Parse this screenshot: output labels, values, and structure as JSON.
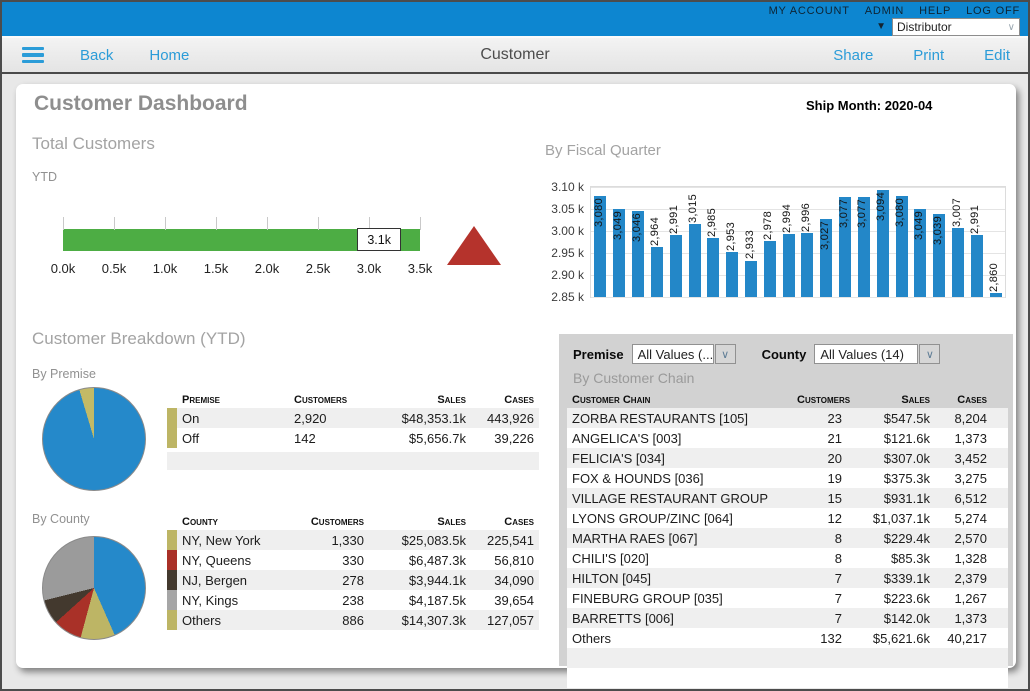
{
  "top_bar": {
    "links": [
      "MY ACCOUNT",
      "ADMIN",
      "HELP",
      "LOG OFF"
    ],
    "selector": {
      "value": "Distributor"
    }
  },
  "nav": {
    "back": "Back",
    "home": "Home",
    "title": "Customer",
    "share": "Share",
    "print": "Print",
    "edit": "Edit"
  },
  "page": {
    "title": "Customer Dashboard",
    "ship_month": "Ship Month: 2020-04",
    "breakdown_title": "Customer Breakdown (YTD)"
  },
  "chart_data": [
    {
      "id": "total-customers-gauge",
      "type": "bar",
      "title": "Total Customers",
      "subtitle": "YTD",
      "value": 3100,
      "value_label": "3.1k",
      "xlim": [
        0,
        3500
      ],
      "axis_ticks": [
        "0.0k",
        "0.5k",
        "1.0k",
        "1.5k",
        "2.0k",
        "2.5k",
        "3.0k",
        "3.5k"
      ],
      "bar_color": "#4dad44",
      "indicator": "red-up-triangle",
      "indicator_color": "#b5332c"
    },
    {
      "id": "by-fiscal-quarter",
      "type": "bar",
      "title": "By Fiscal Quarter",
      "values": [
        3080,
        3049,
        3046,
        2964,
        2991,
        3015,
        2985,
        2953,
        2933,
        2978,
        2994,
        2996,
        3027,
        3077,
        3077,
        3094,
        3080,
        3049,
        3039,
        3007,
        2991,
        2860
      ],
      "labels": [
        "3,080",
        "3,049",
        "3,046",
        "2,964",
        "2,991",
        "3,015",
        "2,985",
        "2,953",
        "2,933",
        "2,978",
        "2,994",
        "2,996",
        "3,027",
        "3,077",
        "3,077",
        "3,094",
        "3,080",
        "3,049",
        "3,039",
        "3,007",
        "2,991",
        "2,860"
      ],
      "ylim": [
        2850,
        3100
      ],
      "ytick_labels": [
        "3.10 k",
        "3.05 k",
        "3.00 k",
        "2.95 k",
        "2.90 k",
        "2.85 k"
      ],
      "bar_color": "#2387c8",
      "grid": true,
      "legend": "none"
    },
    {
      "id": "by-premise-pie",
      "type": "pie",
      "title": "By Premise",
      "slices": [
        {
          "label": "On",
          "pct": 95.4,
          "color": "#2589ca"
        },
        {
          "label": "Off",
          "pct": 4.6,
          "color": "#c3ba66"
        }
      ]
    },
    {
      "id": "by-county-pie",
      "type": "pie",
      "title": "By County",
      "slices": [
        {
          "label": "NY, New York",
          "pct": 43.4,
          "color": "#2589ca"
        },
        {
          "label": "NY, Queens",
          "pct": 10.8,
          "color": "#bdb565"
        },
        {
          "label": "NJ, Bergen",
          "pct": 9.1,
          "color": "#a93128"
        },
        {
          "label": "NY, Kings",
          "pct": 7.8,
          "color": "#43392e"
        },
        {
          "label": "Others",
          "pct": 28.9,
          "color": "#9b9b9b"
        }
      ]
    }
  ],
  "premise_table": {
    "headers": [
      "Premise",
      "Customers",
      "Sales",
      "Cases"
    ],
    "swatches": [
      "#bdb565",
      "#bdb565"
    ],
    "rows": [
      [
        "On",
        "2,920",
        "$48,353.1k",
        "443,926"
      ],
      [
        "Off",
        "142",
        "$5,656.7k",
        "39,226"
      ]
    ]
  },
  "county_table": {
    "headers": [
      "County",
      "Customers",
      "Sales",
      "Cases"
    ],
    "swatches": [
      "#bdb565",
      "#a93128",
      "#43392e",
      "#a6a6a6",
      "#bdb565"
    ],
    "rows": [
      [
        "NY, New York",
        "1,330",
        "$25,083.5k",
        "225,541"
      ],
      [
        "NY, Queens",
        "330",
        "$6,487.3k",
        "56,810"
      ],
      [
        "NJ, Bergen",
        "278",
        "$3,944.1k",
        "34,090"
      ],
      [
        "NY, Kings",
        "238",
        "$4,187.5k",
        "39,654"
      ],
      [
        "Others",
        "886",
        "$14,307.3k",
        "127,057"
      ]
    ]
  },
  "panel": {
    "filters": {
      "premise_label": "Premise",
      "premise_value": "All Values (...",
      "county_label": "County",
      "county_value": "All Values (14)"
    },
    "title": "By Customer Chain",
    "chain_table": {
      "headers": [
        "Customer Chain",
        "Customers",
        "Sales",
        "Cases"
      ],
      "rows": [
        [
          "ZORBA RESTAURANTS [105]",
          "23",
          "$547.5k",
          "8,204"
        ],
        [
          "ANGELICA'S [003]",
          "21",
          "$121.6k",
          "1,373"
        ],
        [
          "FELICIA'S [034]",
          "20",
          "$307.0k",
          "3,452"
        ],
        [
          "FOX & HOUNDS [036]",
          "19",
          "$375.3k",
          "3,275"
        ],
        [
          "VILLAGE RESTAURANT GROUP",
          "15",
          "$931.1k",
          "6,512"
        ],
        [
          "LYONS GROUP/ZINC [064]",
          "12",
          "$1,037.1k",
          "5,274"
        ],
        [
          "MARTHA RAES [067]",
          "8",
          "$229.4k",
          "2,570"
        ],
        [
          "CHILI'S [020]",
          "8",
          "$85.3k",
          "1,328"
        ],
        [
          "HILTON [045]",
          "7",
          "$339.1k",
          "2,379"
        ],
        [
          "FINEBURG GROUP [035]",
          "7",
          "$223.6k",
          "1,267"
        ],
        [
          "BARRETTS [006]",
          "7",
          "$142.0k",
          "1,373"
        ],
        [
          "Others",
          "132",
          "$5,621.6k",
          "40,217"
        ]
      ]
    }
  }
}
